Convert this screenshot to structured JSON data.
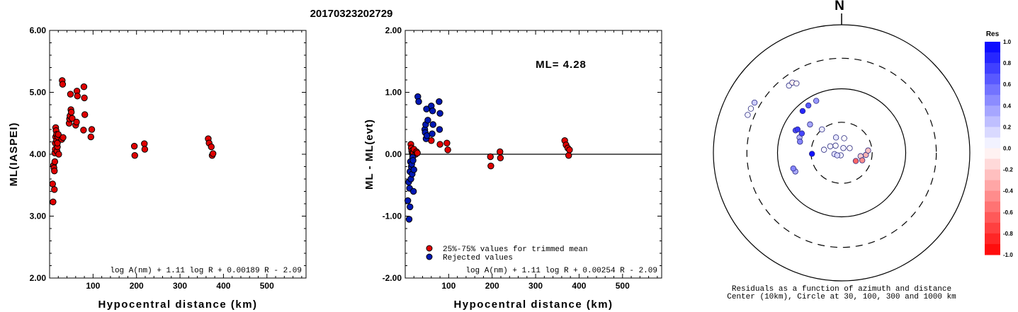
{
  "title": "20170323202729",
  "chart_data": [
    {
      "type": "scatter",
      "ylabel": "ML(IASPEI)",
      "xlabel": "Hypocentral distance (km)",
      "xlim": [
        0,
        590
      ],
      "ylim": [
        2.0,
        6.0
      ],
      "xticks": [
        "100",
        "200",
        "300",
        "400",
        "500"
      ],
      "yticks": [
        "2.00",
        "3.00",
        "4.00",
        "5.00",
        "6.00"
      ],
      "formula": "log A(nm) + 1.11 log R + 0.00189 R - 2.09",
      "points": [
        [
          7,
          3.52
        ],
        [
          8,
          3.23
        ],
        [
          9,
          3.82
        ],
        [
          10,
          3.78
        ],
        [
          11,
          3.43
        ],
        [
          11,
          3.73
        ],
        [
          12,
          3.88
        ],
        [
          12,
          4.02
        ],
        [
          13,
          4.08
        ],
        [
          13,
          4.18
        ],
        [
          14,
          4.28
        ],
        [
          14,
          4.43
        ],
        [
          15,
          4.38
        ],
        [
          16,
          4.22
        ],
        [
          16,
          4.32
        ],
        [
          17,
          4.05
        ],
        [
          18,
          4.12
        ],
        [
          18,
          4.18
        ],
        [
          19,
          4.28
        ],
        [
          20,
          4.32
        ],
        [
          21,
          4.0
        ],
        [
          28,
          4.24
        ],
        [
          29,
          5.19
        ],
        [
          30,
          5.13
        ],
        [
          31,
          4.27
        ],
        [
          45,
          4.5
        ],
        [
          46,
          4.57
        ],
        [
          47,
          4.62
        ],
        [
          48,
          4.97
        ],
        [
          49,
          4.72
        ],
        [
          50,
          4.68
        ],
        [
          52,
          4.58
        ],
        [
          60,
          4.47
        ],
        [
          62,
          4.52
        ],
        [
          63,
          5.02
        ],
        [
          64,
          4.94
        ],
        [
          78,
          4.39
        ],
        [
          79,
          5.09
        ],
        [
          80,
          4.91
        ],
        [
          81,
          4.64
        ],
        [
          95,
          4.28
        ],
        [
          97,
          4.4
        ],
        [
          195,
          4.13
        ],
        [
          196,
          3.98
        ],
        [
          218,
          4.17
        ],
        [
          219,
          4.08
        ],
        [
          365,
          4.25
        ],
        [
          367,
          4.18
        ],
        [
          372,
          4.12
        ],
        [
          374,
          3.98
        ],
        [
          376,
          4.01
        ]
      ]
    },
    {
      "type": "scatter",
      "ylabel": "ML - ML(evt)",
      "xlabel": "Hypocentral distance (km)",
      "xlim": [
        0,
        590
      ],
      "ylim": [
        -2.0,
        2.0
      ],
      "xticks": [
        "100",
        "200",
        "300",
        "400",
        "500"
      ],
      "yticks": [
        "-2.00",
        "-1.00",
        "0.00",
        "1.00",
        "2.00"
      ],
      "ml_text": "ML= 4.28",
      "formula": "log A(nm) + 1.11 log R + 0.00254 R - 2.09",
      "legend": [
        {
          "label": "25%-75% values for trimmed mean",
          "color": "#e00000"
        },
        {
          "label": "Rejected values",
          "color": "#0018b4"
        }
      ],
      "series": [
        {
          "name": "25%-75% values for trimmed mean",
          "color": "#e00000",
          "points": [
            [
              13,
              0.16
            ],
            [
              14,
              0.1
            ],
            [
              15,
              0.05
            ],
            [
              16,
              0.02
            ],
            [
              17,
              0.0
            ],
            [
              18,
              -0.02
            ],
            [
              19,
              0.03
            ],
            [
              20,
              0.08
            ],
            [
              24,
              0.0
            ],
            [
              26,
              0.04
            ],
            [
              28,
              0.02
            ],
            [
              60,
              0.22
            ],
            [
              80,
              0.16
            ],
            [
              96,
              0.18
            ],
            [
              98,
              0.07
            ],
            [
              196,
              -0.04
            ],
            [
              197,
              -0.19
            ],
            [
              218,
              0.04
            ],
            [
              219,
              -0.06
            ],
            [
              367,
              0.22
            ],
            [
              370,
              0.15
            ],
            [
              374,
              0.1
            ],
            [
              376,
              -0.02
            ],
            [
              378,
              0.07
            ]
          ]
        },
        {
          "name": "Rejected values",
          "color": "#0018b4",
          "points": [
            [
              6,
              -0.75
            ],
            [
              8,
              -0.45
            ],
            [
              9,
              -1.05
            ],
            [
              10,
              -0.55
            ],
            [
              11,
              -0.85
            ],
            [
              11,
              -0.28
            ],
            [
              12,
              -0.12
            ],
            [
              13,
              -0.4
            ],
            [
              14,
              -0.2
            ],
            [
              15,
              -0.16
            ],
            [
              16,
              -0.32
            ],
            [
              17,
              -0.05
            ],
            [
              18,
              -0.1
            ],
            [
              19,
              -0.6
            ],
            [
              20,
              -0.25
            ],
            [
              29,
              0.93
            ],
            [
              31,
              0.85
            ],
            [
              45,
              0.4
            ],
            [
              46,
              0.35
            ],
            [
              47,
              0.48
            ],
            [
              48,
              0.25
            ],
            [
              49,
              0.73
            ],
            [
              50,
              0.3
            ],
            [
              52,
              0.55
            ],
            [
              60,
              0.78
            ],
            [
              62,
              0.33
            ],
            [
              63,
              0.7
            ],
            [
              64,
              0.48
            ],
            [
              78,
              0.85
            ],
            [
              79,
              0.4
            ],
            [
              80,
              0.66
            ]
          ]
        }
      ]
    },
    {
      "type": "scatter",
      "subtype": "polar-residuals",
      "north_label": "N",
      "caption": [
        "Residuals as a function of azimuth and distance",
        "Center (10km), Circle at 30, 100, 300 and 1000 km"
      ],
      "colorbar_title": "Res",
      "colorbar_ticks": [
        "1.0",
        "0.8",
        "0.6",
        "0.4",
        "0.2",
        "0.0",
        "-0.2",
        "-0.4",
        "-0.6",
        "-0.8",
        "-1.0"
      ],
      "points": [
        {
          "azimuth": 292,
          "distance": 380,
          "res": 0.05
        },
        {
          "azimuth": 296,
          "distance": 375,
          "res": 0.0
        },
        {
          "azimuth": 300,
          "distance": 370,
          "res": 0.2
        },
        {
          "azimuth": 322,
          "distance": 215,
          "res": 0.04
        },
        {
          "azimuth": 325,
          "distance": 218,
          "res": -0.06
        },
        {
          "azimuth": 327,
          "distance": 196,
          "res": -0.04
        },
        {
          "azimuth": 325,
          "distance": 80,
          "res": 0.66
        },
        {
          "azimuth": 317,
          "distance": 78,
          "res": 0.85
        },
        {
          "azimuth": 334,
          "distance": 80,
          "res": 0.4
        },
        {
          "azimuth": 296,
          "distance": 63,
          "res": 0.7
        },
        {
          "azimuth": 298,
          "distance": 60,
          "res": 0.78
        },
        {
          "azimuth": 290,
          "distance": 50,
          "res": 0.3
        },
        {
          "azimuth": 296,
          "distance": 49,
          "res": 0.73
        },
        {
          "azimuth": 285,
          "distance": 47,
          "res": 0.48
        },
        {
          "azimuth": 312,
          "distance": 46,
          "res": 0.35
        },
        {
          "azimuth": 320,
          "distance": 30,
          "res": 0.08
        },
        {
          "azimuth": 248,
          "distance": 60,
          "res": 0.33
        },
        {
          "azimuth": 252,
          "distance": 62,
          "res": 0.48
        },
        {
          "azimuth": 268,
          "distance": 29,
          "res": 0.93
        },
        {
          "azimuth": 20,
          "distance": 12,
          "res": 0.05
        },
        {
          "azimuth": 320,
          "distance": 14,
          "res": 0.0
        },
        {
          "azimuth": 300,
          "distance": 16,
          "res": 0.02
        },
        {
          "azimuth": 340,
          "distance": 18,
          "res": 0.1
        },
        {
          "azimuth": 10,
          "distance": 17,
          "res": 0.0
        },
        {
          "azimuth": 280,
          "distance": 19,
          "res": 0.03
        },
        {
          "azimuth": 60,
          "distance": 14,
          "res": -0.02
        },
        {
          "azimuth": 260,
          "distance": 13,
          "res": 0.12
        },
        {
          "azimuth": 100,
          "distance": 20,
          "res": -0.2
        },
        {
          "azimuth": 110,
          "distance": 22,
          "res": -0.45
        },
        {
          "azimuth": 95,
          "distance": 24,
          "res": -0.3
        },
        {
          "azimuth": 120,
          "distance": 18,
          "res": -0.6
        },
        {
          "azimuth": 85,
          "distance": 26,
          "res": -0.25
        },
        {
          "azimuth": 200,
          "distance": 11,
          "res": 0.05
        },
        {
          "azimuth": 240,
          "distance": 12,
          "res": 0.15
        }
      ]
    }
  ]
}
